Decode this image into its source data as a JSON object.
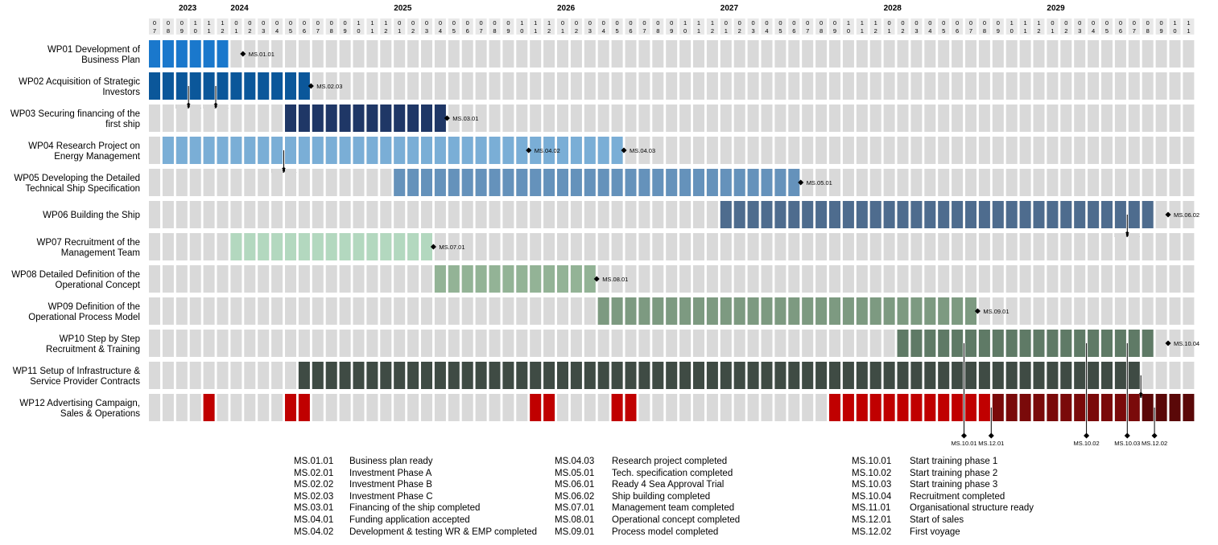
{
  "timeline": {
    "start_year": 2023,
    "start_month": 7,
    "total_months": 77,
    "years": [
      "2023",
      "2024",
      "2025",
      "2026",
      "2027",
      "2028",
      "2029"
    ]
  },
  "work_packages": [
    {
      "label_lines": [
        "WP01 Development of",
        "Business Plan"
      ],
      "color": "#1a78cc",
      "bars": [
        [
          0,
          5
        ]
      ],
      "milestones": [
        {
          "code": "MS.01.01",
          "at": 7
        }
      ]
    },
    {
      "label_lines": [
        "WP02 Acquisition of Strategic",
        "Investors"
      ],
      "color": "#0b579a",
      "bars": [
        [
          0,
          11
        ]
      ],
      "milestones": [
        {
          "code": "MS.02.01",
          "at": 3,
          "below": true
        },
        {
          "code": "MS.02.02",
          "at": 5,
          "below": true
        },
        {
          "code": "MS.02.03",
          "at": 12
        }
      ]
    },
    {
      "label_lines": [
        "WP03 Securing financing of the",
        "first ship"
      ],
      "color": "#1f3766",
      "bars": [
        [
          10,
          21
        ]
      ],
      "milestones": [
        {
          "code": "MS.03.01",
          "at": 22
        }
      ]
    },
    {
      "label_lines": [
        "WP04 Research Project on",
        "Energy Management"
      ],
      "color": "#7aaed6",
      "bars": [
        [
          1,
          34
        ]
      ],
      "milestones": [
        {
          "code": "MS.04.01",
          "at": 10,
          "below": true
        },
        {
          "code": "MS.04.02",
          "at": 28,
          "row_offset": 5
        },
        {
          "code": "MS.04.03",
          "at": 35
        }
      ]
    },
    {
      "label_lines": [
        "WP05 Developing the Detailed",
        "Technical Ship Specification"
      ],
      "color": "#6592bb",
      "bars": [
        [
          18,
          47
        ]
      ],
      "milestones": [
        {
          "code": "MS.05.01",
          "at": 48
        }
      ]
    },
    {
      "label_lines": [
        "WP06 Building the Ship"
      ],
      "color": "#4e6c8e",
      "bars": [
        [
          42,
          73
        ]
      ],
      "milestones": [
        {
          "code": "MS.06.01",
          "at": 72,
          "below": true
        },
        {
          "code": "MS.06.02",
          "at": 75
        }
      ]
    },
    {
      "label_lines": [
        "WP07 Recruitment of the",
        "Management Team"
      ],
      "color": "#b3d8bf",
      "bars": [
        [
          6,
          20
        ]
      ],
      "milestones": [
        {
          "code": "MS.07.01",
          "at": 21
        }
      ]
    },
    {
      "label_lines": [
        "WP08 Detailed Definition of the",
        "Operational Concept"
      ],
      "color": "#93b396",
      "bars": [
        [
          21,
          32
        ]
      ],
      "milestones": [
        {
          "code": "MS.08.01",
          "at": 33
        }
      ]
    },
    {
      "label_lines": [
        "WP09 Definition of the",
        "Operational Process Model"
      ],
      "color": "#7d9a81",
      "bars": [
        [
          33,
          60
        ]
      ],
      "milestones": [
        {
          "code": "MS.09.01",
          "at": 61
        }
      ]
    },
    {
      "label_lines": [
        "WP10 Step by Step",
        "Recruitment & Training"
      ],
      "color": "#5f7a66",
      "bars": [
        [
          55,
          73
        ]
      ],
      "milestones": [
        {
          "code": "MS.10.01",
          "at": 60,
          "bottom": true
        },
        {
          "code": "MS.10.02",
          "at": 69,
          "bottom": true
        },
        {
          "code": "MS.10.03",
          "at": 72,
          "bottom": true
        },
        {
          "code": "MS.10.04",
          "at": 75
        }
      ]
    },
    {
      "label_lines": [
        "WP11 Setup of Infrastructure &",
        "Service Provider Contracts"
      ],
      "color": "#3f4b44",
      "bars": [
        [
          11,
          72
        ]
      ],
      "milestones": [
        {
          "code": "MS.11.01",
          "at": 73,
          "below": true
        }
      ]
    },
    {
      "label_lines": [
        "WP12 Advertising Campaign,",
        "Sales & Operations"
      ],
      "color": "#c00000",
      "dark_color": "#7a0a0a",
      "darker_color": "#5a0808",
      "bars": [
        [
          4,
          4
        ],
        [
          10,
          11
        ],
        [
          28,
          29
        ],
        [
          34,
          35
        ],
        [
          50,
          61
        ]
      ],
      "dark_bars": [
        [
          62,
          72
        ]
      ],
      "darker_bars": [
        [
          73,
          76
        ]
      ],
      "milestones": [
        {
          "code": "MS.12.01",
          "at": 62,
          "bottom": true
        },
        {
          "code": "MS.12.02",
          "at": 74,
          "bottom": true
        }
      ]
    }
  ],
  "legend": {
    "col1": [
      [
        "MS.01.01",
        "Business plan ready"
      ],
      [
        "MS.02.01",
        "Investment Phase A"
      ],
      [
        "MS.02.02",
        "Investment Phase B"
      ],
      [
        "MS.02.03",
        "Investment Phase C"
      ],
      [
        "MS.03.01",
        "Financing of the ship completed"
      ],
      [
        "MS.04.01",
        "Funding application accepted"
      ],
      [
        "MS.04.02",
        "Development & testing WR & EMP completed"
      ]
    ],
    "col2": [
      [
        "MS.04.03",
        "Research project completed"
      ],
      [
        "MS.05.01",
        "Tech. specification completed"
      ],
      [
        "MS.06.01",
        "Ready 4 Sea Approval Trial"
      ],
      [
        "MS.06.02",
        "Ship building completed"
      ],
      [
        "MS.07.01",
        "Management team completed"
      ],
      [
        "MS.08.01",
        "Operational concept completed"
      ],
      [
        "MS.09.01",
        "Process model completed"
      ]
    ],
    "col3": [
      [
        "MS.10.01",
        "Start training phase 1"
      ],
      [
        "MS.10.02",
        "Start training phase 2"
      ],
      [
        "MS.10.03",
        "Start training phase 3"
      ],
      [
        "MS.10.04",
        "Recruitment completed"
      ],
      [
        "MS.11.01",
        "Organisational structure ready"
      ],
      [
        "MS.12.01",
        "Start of sales"
      ],
      [
        "MS.12.02",
        "First voyage"
      ]
    ]
  }
}
